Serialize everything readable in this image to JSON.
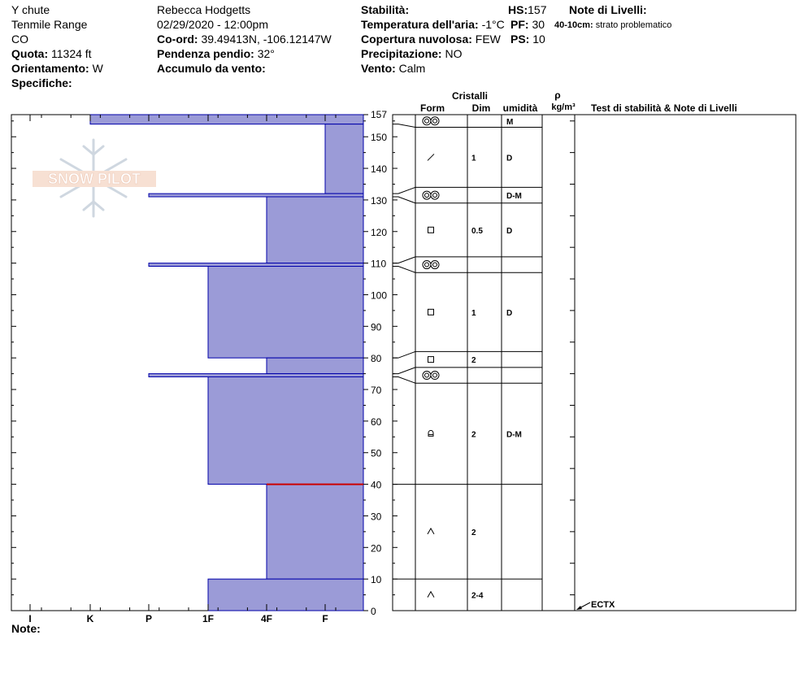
{
  "header": {
    "location": "Y chute",
    "range": "Tenmile Range",
    "state": "CO",
    "elevation_label": "Quota:",
    "elevation_value": "11324 ft",
    "aspect_label": "Orientamento:",
    "aspect_value": "W",
    "specifics_label": "Specifiche:",
    "observer": "Rebecca Hodgetts",
    "datetime": "02/29/2020 - 12:00pm",
    "coord_label": "Co-ord:",
    "coord_value": "39.49413N, -106.12147W",
    "slope_label": "Pendenza pendio:",
    "slope_value": "32°",
    "wind_loading_label": "Accumulo da vento:",
    "stability_label": "Stabilità:",
    "air_temp_label": "Temperatura dell'aria:",
    "air_temp_value": "-1°C",
    "cloud_label": "Copertura nuvolosa:",
    "cloud_value": "FEW",
    "precip_label": "Precipitazione:",
    "precip_value": "NO",
    "wind_label": "Vento:",
    "wind_value": "Calm",
    "hs_label": "HS:",
    "hs_value": "157",
    "pf_label": "PF:",
    "pf_value": "30",
    "ps_label": "PS:",
    "ps_value": "10",
    "layer_notes_label": "Note di Livelli:",
    "layer_note_range": "40-10cm:",
    "layer_note_text": "strato problematico"
  },
  "columns": {
    "crystals": "Cristalli",
    "form": "Form",
    "dim": "Dim",
    "moisture": "umidità",
    "rho": "ρ",
    "density_unit": "kg/m³",
    "stability_tests": "Test di stabilità & Note di Livelli"
  },
  "footer": {
    "note_label": "Note:"
  },
  "logo_text": "SNOW PILOT",
  "chart_data": {
    "type": "bar",
    "description_axis": "hardness profile",
    "hardness_levels": [
      "I",
      "K",
      "P",
      "1F",
      "4F",
      "F"
    ],
    "depth_ticks": [
      "0",
      "10",
      "20",
      "30",
      "40",
      "50",
      "60",
      "70",
      "80",
      "90",
      "100",
      "110",
      "120",
      "130",
      "140",
      "150",
      "157"
    ],
    "ylim": [
      0,
      157
    ],
    "layers": [
      {
        "top": 157,
        "bottom": 154,
        "hardness": "K",
        "form": "melt-forms",
        "dim": "",
        "moisture": "M"
      },
      {
        "top": 154,
        "bottom": 132,
        "hardness": "F",
        "form": "decomposing",
        "dim": "1",
        "moisture": "D"
      },
      {
        "top": 132,
        "bottom": 131,
        "hardness": "P",
        "form": "melt-forms",
        "dim": "",
        "moisture": "D-M"
      },
      {
        "top": 131,
        "bottom": 110,
        "hardness": "4F",
        "form": "faceted",
        "dim": "0.5",
        "moisture": "D"
      },
      {
        "top": 110,
        "bottom": 109,
        "hardness": "P",
        "form": "melt-forms",
        "dim": "",
        "moisture": ""
      },
      {
        "top": 109,
        "bottom": 80,
        "hardness": "1F",
        "form": "faceted",
        "dim": "1",
        "moisture": "D"
      },
      {
        "top": 80,
        "bottom": 75,
        "hardness": "4F",
        "form": "faceted",
        "dim": "2",
        "moisture": ""
      },
      {
        "top": 75,
        "bottom": 74,
        "hardness": "P",
        "form": "melt-forms",
        "dim": "",
        "moisture": ""
      },
      {
        "top": 74,
        "bottom": 40,
        "hardness": "1F",
        "form": "rounding-facets",
        "dim": "2",
        "moisture": "D-M"
      },
      {
        "top": 40,
        "bottom": 10,
        "hardness": "4F",
        "form": "depth-hoar",
        "dim": "2",
        "moisture": ""
      },
      {
        "top": 10,
        "bottom": 0,
        "hardness": "1F",
        "form": "depth-hoar",
        "dim": "2-4",
        "moisture": ""
      }
    ],
    "weak_layer_depth": 40,
    "stability_test": {
      "label": "ECTX",
      "depth": 0
    },
    "colors": {
      "fill": "#9b9bd7",
      "stroke": "#0000aa",
      "weak": "#cc0000"
    }
  }
}
